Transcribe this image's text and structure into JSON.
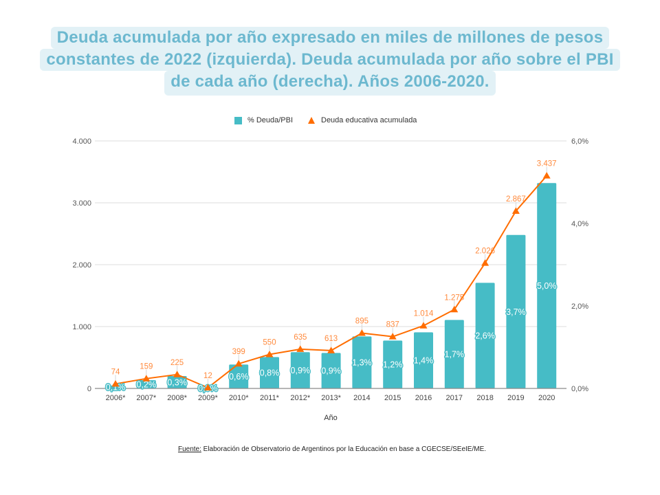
{
  "header": {
    "title_lines": [
      "Deuda acumulada por año expresado en miles de millones de pesos",
      "constantes de 2022 (izquierda). Deuda acumulada por año sobre el PBI",
      "de cada año (derecha). Años 2006-2020."
    ]
  },
  "colors": {
    "bar": "#46bcc6",
    "line": "#ff6d00",
    "line_label": "#ff8a3d",
    "title_text": "#6cb8cf",
    "title_bg": "#e2f1f6",
    "grid": "#dddddd",
    "baseline": "#8a8a8a"
  },
  "chart_data": {
    "type": "bar",
    "title": "Deuda acumulada por año expresado en miles de millones de pesos constantes de 2022 (izquierda). Deuda acumulada por año sobre el PBI de cada año (derecha). Años 2006-2020.",
    "categories": [
      "2006*",
      "2007*",
      "2008*",
      "2009*",
      "2010*",
      "2011*",
      "2012*",
      "2013*",
      "2014",
      "2015",
      "2016",
      "2017",
      "2018",
      "2019",
      "2020"
    ],
    "series": [
      {
        "name": "% Deuda/PBI",
        "type": "bar",
        "axis": "right",
        "values": [
          0.07,
          0.2,
          0.3,
          0.01,
          0.58,
          0.76,
          0.88,
          0.86,
          1.26,
          1.16,
          1.36,
          1.66,
          2.56,
          3.72,
          4.98
        ],
        "labels": [
          "0,1%",
          "0,2%",
          "0,3%",
          "0,0%",
          "0,6%",
          "0,8%",
          "0,9%",
          "0,9%",
          "1,3%",
          "1,2%",
          "1,4%",
          "1,7%",
          "2,6%",
          "3,7%",
          "5,0%"
        ]
      },
      {
        "name": "Deuda educativa acumulada",
        "type": "line",
        "axis": "left",
        "values": [
          74,
          159,
          225,
          12,
          399,
          550,
          635,
          613,
          895,
          837,
          1014,
          1275,
          2026,
          2867,
          3437
        ],
        "labels": [
          "74",
          "159",
          "225",
          "12",
          "399",
          "550",
          "635",
          "613",
          "895",
          "837",
          "1.014",
          "1.275",
          "2.026",
          "2.867",
          "3.437"
        ]
      }
    ],
    "xlabel": "Año",
    "ylabel": "",
    "ylim": [
      0,
      4000
    ],
    "y_left": {
      "min": 0,
      "max": 4000,
      "ticks": [
        0,
        1000,
        2000,
        3000,
        4000
      ],
      "tick_labels": [
        "0",
        "1.000",
        "2.000",
        "3.000",
        "4.000"
      ]
    },
    "y_right": {
      "min": 0,
      "max": 6,
      "ticks": [
        0,
        2,
        4,
        6
      ],
      "tick_labels": [
        "0,0%",
        "2,0%",
        "4,0%",
        "6,0%"
      ]
    },
    "grid": true,
    "legend": {
      "position": "top-center",
      "entries": [
        {
          "label": "% Deuda/PBI",
          "marker": "square"
        },
        {
          "label": "Deuda educativa acumulada",
          "marker": "triangle"
        }
      ]
    }
  },
  "source": {
    "label": "Fuente:",
    "text": " Elaboración de Observatorio de Argentinos por la Educación en base a CGECSE/SEeIE/ME."
  }
}
